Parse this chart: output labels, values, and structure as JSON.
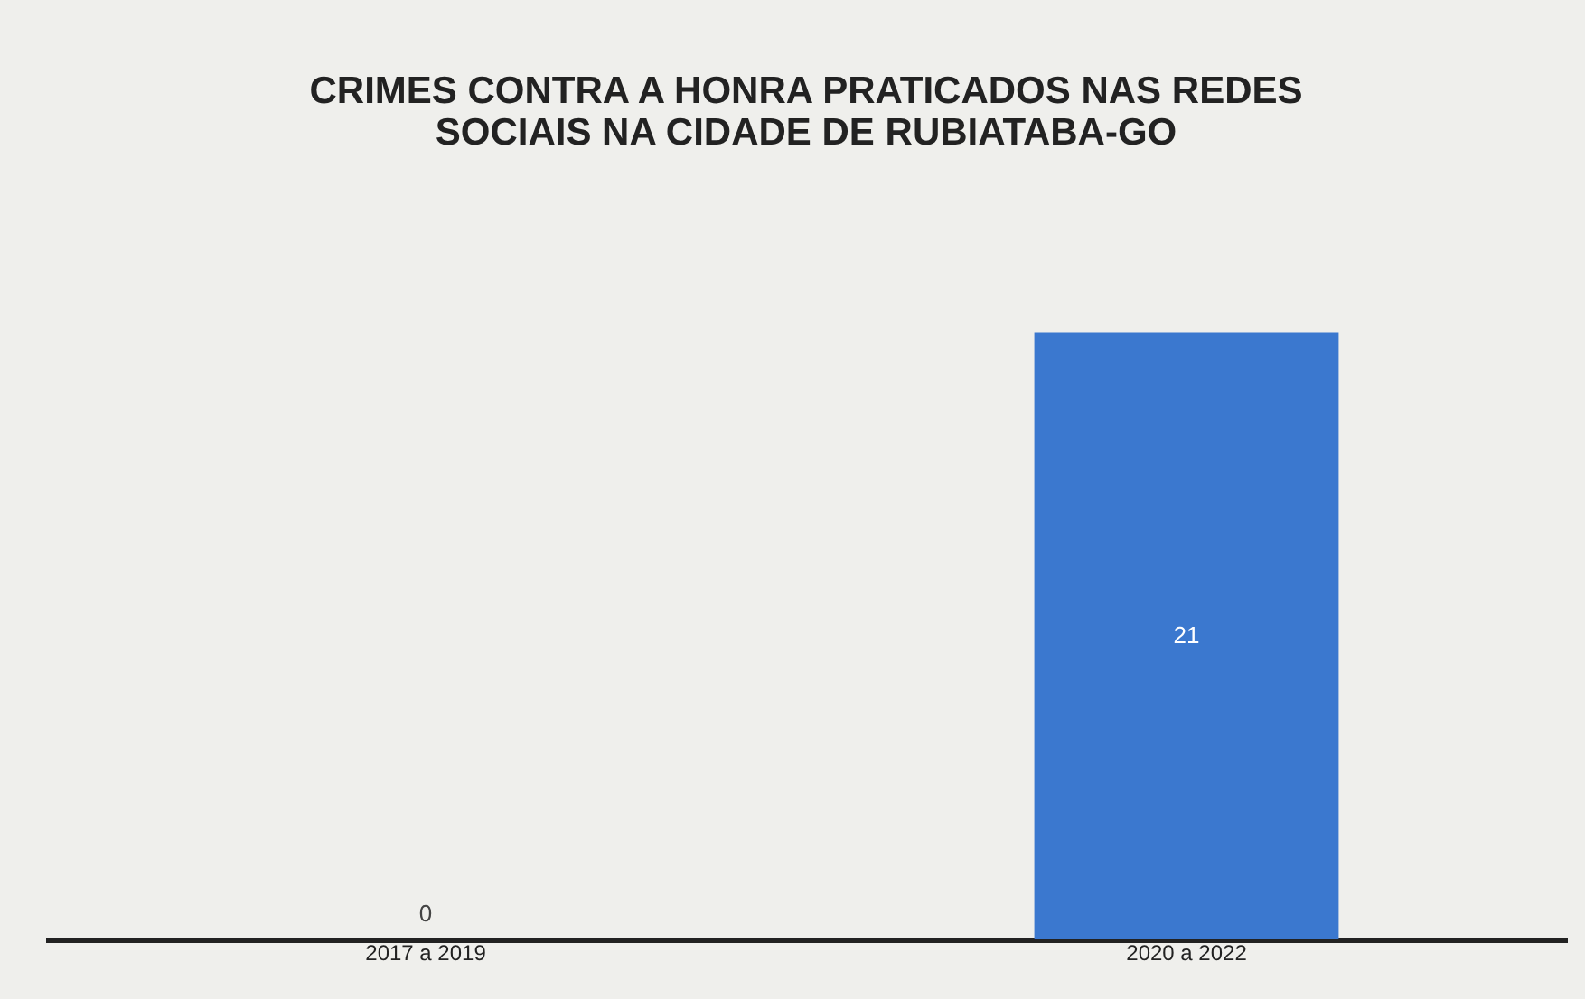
{
  "chart_data": {
    "type": "bar",
    "title": "CRIMES CONTRA A HONRA PRATICADOS NAS REDES SOCIAIS NA CIDADE DE RUBIATABA-GO",
    "categories": [
      "2017 a 2019",
      "2020 a 2022"
    ],
    "values": [
      0,
      21
    ],
    "color": "#3b78cf",
    "data_labels": true,
    "grid": false
  }
}
